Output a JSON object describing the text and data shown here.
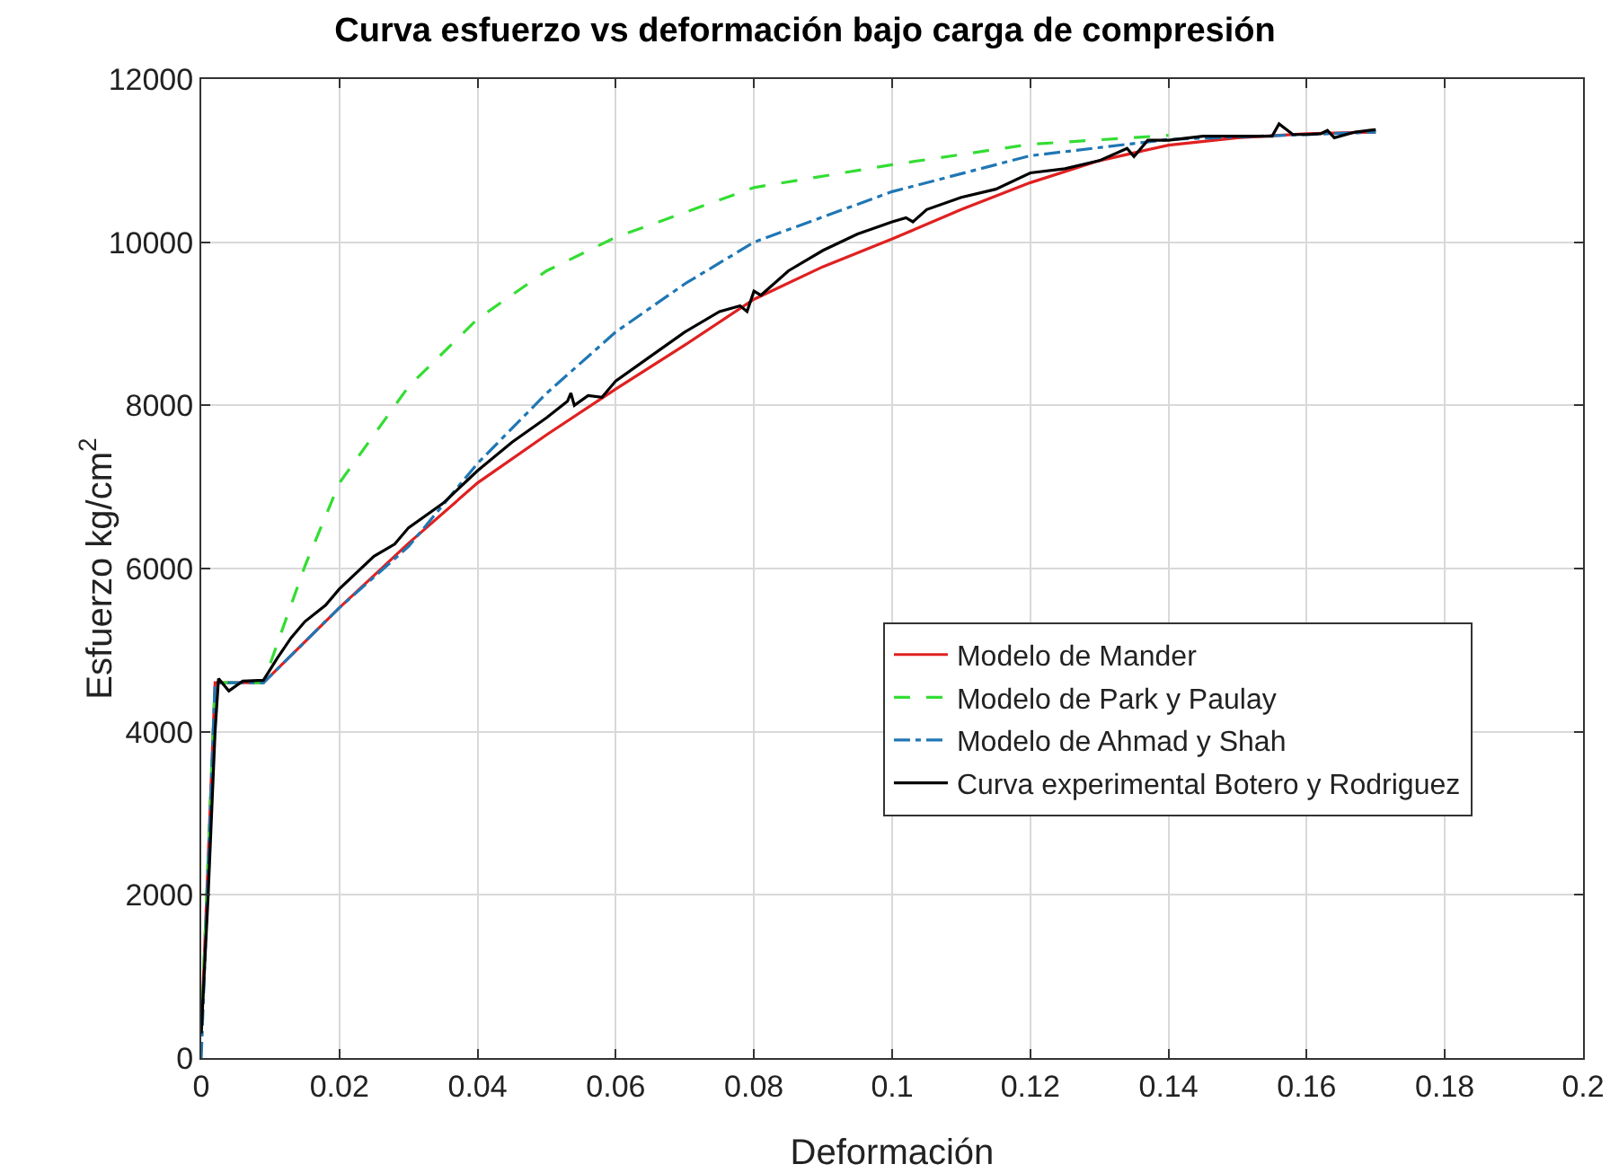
{
  "chart_data": {
    "type": "line",
    "title": "Curva esfuerzo vs deformación bajo carga de compresión",
    "xlabel": "Deformación",
    "ylabel": "Esfuerzo kg/cm$^{2}$",
    "xlim": [
      0,
      0.2
    ],
    "xticks": [
      0,
      0.02,
      0.04,
      0.06,
      0.08,
      0.1,
      0.12,
      0.14,
      0.16,
      0.18,
      0.2
    ],
    "ylim": [
      0,
      12000
    ],
    "yticks": [
      0,
      2000,
      4000,
      6000,
      8000,
      10000,
      12000
    ],
    "grid": true,
    "legend": "right",
    "marker": "none",
    "series": [
      {
        "name": "Modelo de Mander",
        "color": "#e02020",
        "line_style": "solid",
        "x": [
          0,
          0.002,
          0.009,
          0.02,
          0.03,
          0.04,
          0.05,
          0.06,
          0.07,
          0.08,
          0.09,
          0.1,
          0.11,
          0.12,
          0.13,
          0.14,
          0.15,
          0.16,
          0.17
        ],
        "values": [
          300,
          4600,
          4600,
          5520,
          6310,
          7050,
          7640,
          8200,
          8740,
          9300,
          9700,
          10040,
          10400,
          10730,
          11000,
          11190,
          11280,
          11330,
          11350
        ]
      },
      {
        "name": "Modelo de Park y Paulay",
        "color": "#33dd33",
        "line_style": "dashed",
        "x": [
          0,
          0.002,
          0.009,
          0.015,
          0.02,
          0.03,
          0.04,
          0.05,
          0.06,
          0.08,
          0.1,
          0.12,
          0.14
        ],
        "values": [
          300,
          4600,
          4600,
          6030,
          7050,
          8230,
          9060,
          9650,
          10060,
          10670,
          10950,
          11200,
          11310
        ]
      },
      {
        "name": "Modelo de Ahmad y Shah",
        "color": "#1f77b4",
        "line_style": "dashdot",
        "x": [
          0,
          0.002,
          0.009,
          0.02,
          0.03,
          0.04,
          0.05,
          0.06,
          0.07,
          0.08,
          0.1,
          0.12,
          0.14,
          0.17
        ],
        "values": [
          0,
          4600,
          4600,
          5520,
          6270,
          7290,
          8150,
          8900,
          9490,
          10000,
          10620,
          11060,
          11260,
          11350
        ]
      },
      {
        "name": "Curva experimental Botero y Rodriguez",
        "color": "#000000",
        "line_style": "solid",
        "x": [
          0,
          0.001,
          0.002,
          0.0025,
          0.004,
          0.006,
          0.009,
          0.011,
          0.013,
          0.015,
          0.018,
          0.02,
          0.025,
          0.028,
          0.03,
          0.035,
          0.04,
          0.045,
          0.05,
          0.053,
          0.0535,
          0.054,
          0.056,
          0.058,
          0.06,
          0.065,
          0.07,
          0.075,
          0.078,
          0.079,
          0.08,
          0.081,
          0.085,
          0.09,
          0.095,
          0.1,
          0.102,
          0.103,
          0.105,
          0.11,
          0.115,
          0.12,
          0.125,
          0.13,
          0.134,
          0.135,
          0.137,
          0.14,
          0.145,
          0.15,
          0.155,
          0.156,
          0.158,
          0.16,
          0.162,
          0.163,
          0.164,
          0.167,
          0.17
        ],
        "values": [
          300,
          2000,
          4000,
          4650,
          4500,
          4620,
          4630,
          4900,
          5150,
          5350,
          5550,
          5750,
          6150,
          6300,
          6500,
          6800,
          7200,
          7550,
          7850,
          8050,
          8150,
          8000,
          8120,
          8100,
          8300,
          8600,
          8900,
          9150,
          9220,
          9150,
          9400,
          9350,
          9650,
          9900,
          10100,
          10250,
          10300,
          10250,
          10400,
          10550,
          10650,
          10850,
          10900,
          11000,
          11150,
          11050,
          11250,
          11250,
          11300,
          11300,
          11300,
          11450,
          11320,
          11320,
          11330,
          11370,
          11280,
          11350,
          11380
        ]
      }
    ]
  }
}
